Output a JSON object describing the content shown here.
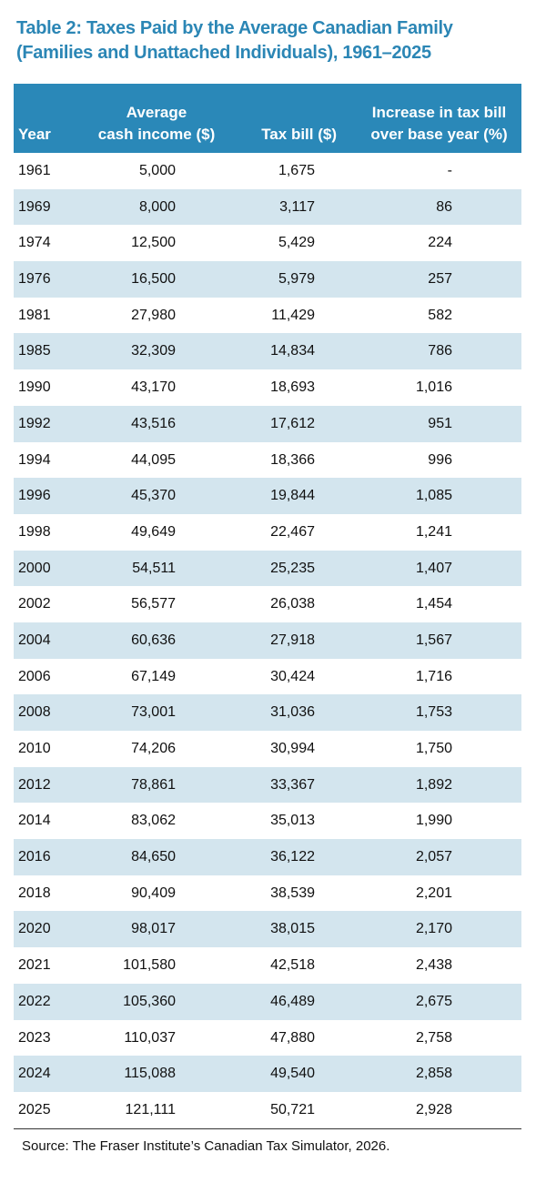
{
  "title": [
    "Table 2: Taxes Paid by the Average Canadian Family",
    "(Families and Unattached Individuals), 1961–2025"
  ],
  "table": {
    "headers": [
      [
        "Year"
      ],
      [
        "Average",
        "cash income ($)"
      ],
      [
        "Tax bill ($)"
      ],
      [
        "Increase in tax bill",
        "over base year (%)"
      ]
    ],
    "rows": [
      [
        "1961",
        "5,000",
        "1,675",
        "-"
      ],
      [
        "1969",
        "8,000",
        "3,117",
        "86"
      ],
      [
        "1974",
        "12,500",
        "5,429",
        "224"
      ],
      [
        "1976",
        "16,500",
        "5,979",
        "257"
      ],
      [
        "1981",
        "27,980",
        "11,429",
        "582"
      ],
      [
        "1985",
        "32,309",
        "14,834",
        "786"
      ],
      [
        "1990",
        "43,170",
        "18,693",
        "1,016"
      ],
      [
        "1992",
        "43,516",
        "17,612",
        "951"
      ],
      [
        "1994",
        "44,095",
        "18,366",
        "996"
      ],
      [
        "1996",
        "45,370",
        "19,844",
        "1,085"
      ],
      [
        "1998",
        "49,649",
        "22,467",
        "1,241"
      ],
      [
        "2000",
        "54,511",
        "25,235",
        "1,407"
      ],
      [
        "2002",
        "56,577",
        "26,038",
        "1,454"
      ],
      [
        "2004",
        "60,636",
        "27,918",
        "1,567"
      ],
      [
        "2006",
        "67,149",
        "30,424",
        "1,716"
      ],
      [
        "2008",
        "73,001",
        "31,036",
        "1,753"
      ],
      [
        "2010",
        "74,206",
        "30,994",
        "1,750"
      ],
      [
        "2012",
        "78,861",
        "33,367",
        "1,892"
      ],
      [
        "2014",
        "83,062",
        "35,013",
        "1,990"
      ],
      [
        "2016",
        "84,650",
        "36,122",
        "2,057"
      ],
      [
        "2018",
        "90,409",
        "38,539",
        "2,201"
      ],
      [
        "2020",
        "98,017",
        "38,015",
        "2,170"
      ],
      [
        "2021",
        "101,580",
        "42,518",
        "2,438"
      ],
      [
        "2022",
        "105,360",
        "46,489",
        "2,675"
      ],
      [
        "2023",
        "110,037",
        "47,880",
        "2,758"
      ],
      [
        "2024",
        "115,088",
        "49,540",
        "2,858"
      ],
      [
        "2025",
        "121,111",
        "50,721",
        "2,928"
      ]
    ]
  },
  "source": "Source: The Fraser Institute’s Canadian Tax Simulator, 2026."
}
